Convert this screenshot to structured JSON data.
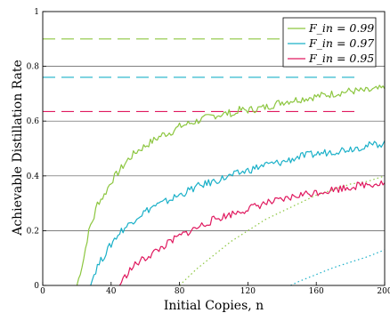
{
  "chart_data": {
    "type": "line",
    "xlabel": "Initial Copies, n",
    "ylabel": "Achievable Distillation Rate",
    "xlim": [
      0,
      200
    ],
    "ylim": [
      0,
      1
    ],
    "x_ticks": [
      0,
      40,
      80,
      120,
      160,
      200
    ],
    "x_tick_labels": [
      "0",
      "40",
      "80",
      "120",
      "160",
      "200"
    ],
    "y_ticks": [
      0,
      0.2,
      0.4,
      0.6,
      0.8,
      1
    ],
    "y_tick_labels": [
      "0",
      "0.2",
      "0.4",
      "0.6",
      "0.8",
      "1"
    ],
    "grid": "horizontal",
    "legend_position": "top-right",
    "legend_labels": [
      "F_in = 0.99",
      "F_in = 0.97",
      "F_in = 0.95"
    ],
    "series": [
      {
        "name": "F_in = 0.99",
        "color": "#8cc63f",
        "style": "solid",
        "x": [
          20,
          22,
          24,
          26,
          28,
          30,
          32,
          36,
          40,
          45,
          50,
          55,
          60,
          65,
          70,
          75,
          80,
          90,
          100,
          110,
          112,
          114,
          120,
          130,
          140,
          150,
          160,
          170,
          180,
          190,
          200
        ],
        "values": [
          0.0,
          0.05,
          0.1,
          0.17,
          0.22,
          0.25,
          0.3,
          0.33,
          0.38,
          0.42,
          0.46,
          0.49,
          0.51,
          0.53,
          0.55,
          0.56,
          0.58,
          0.6,
          0.62,
          0.63,
          0.62,
          0.64,
          0.64,
          0.65,
          0.67,
          0.68,
          0.69,
          0.7,
          0.71,
          0.71,
          0.72
        ]
      },
      {
        "name": "F_in = 0.97",
        "color": "#1ab0c8",
        "style": "solid",
        "x": [
          28,
          30,
          32,
          35,
          38,
          42,
          46,
          50,
          55,
          60,
          65,
          70,
          80,
          90,
          100,
          110,
          120,
          130,
          140,
          150,
          160,
          170,
          180,
          190,
          200
        ],
        "values": [
          0.0,
          0.04,
          0.07,
          0.1,
          0.13,
          0.17,
          0.2,
          0.22,
          0.25,
          0.27,
          0.29,
          0.3,
          0.33,
          0.36,
          0.38,
          0.4,
          0.42,
          0.44,
          0.45,
          0.47,
          0.48,
          0.49,
          0.5,
          0.51,
          0.52
        ]
      },
      {
        "name": "F_in = 0.95",
        "color": "#e0195f",
        "style": "solid",
        "x": [
          45,
          47,
          50,
          55,
          60,
          65,
          70,
          80,
          90,
          100,
          110,
          120,
          130,
          140,
          150,
          160,
          170,
          180,
          190,
          200
        ],
        "values": [
          0.0,
          0.02,
          0.05,
          0.08,
          0.1,
          0.12,
          0.14,
          0.18,
          0.21,
          0.24,
          0.26,
          0.28,
          0.3,
          0.31,
          0.33,
          0.34,
          0.35,
          0.36,
          0.37,
          0.375
        ]
      }
    ],
    "dashed_lines": [
      {
        "color": "#8cc63f",
        "y": 0.9
      },
      {
        "color": "#1ab0c8",
        "y": 0.76
      },
      {
        "color": "#e0195f",
        "y": 0.635
      }
    ],
    "dotted_curves": [
      {
        "color": "#8cc63f",
        "x": [
          80,
          90,
          100,
          110,
          120,
          130,
          140,
          150,
          160,
          170,
          180,
          190,
          200
        ],
        "values": [
          0.0,
          0.06,
          0.11,
          0.16,
          0.2,
          0.24,
          0.27,
          0.3,
          0.33,
          0.35,
          0.37,
          0.38,
          0.4
        ]
      },
      {
        "color": "#1ab0c8",
        "x": [
          145,
          150,
          160,
          170,
          180,
          190,
          200
        ],
        "values": [
          0.0,
          0.015,
          0.04,
          0.065,
          0.085,
          0.105,
          0.13
        ]
      }
    ]
  }
}
